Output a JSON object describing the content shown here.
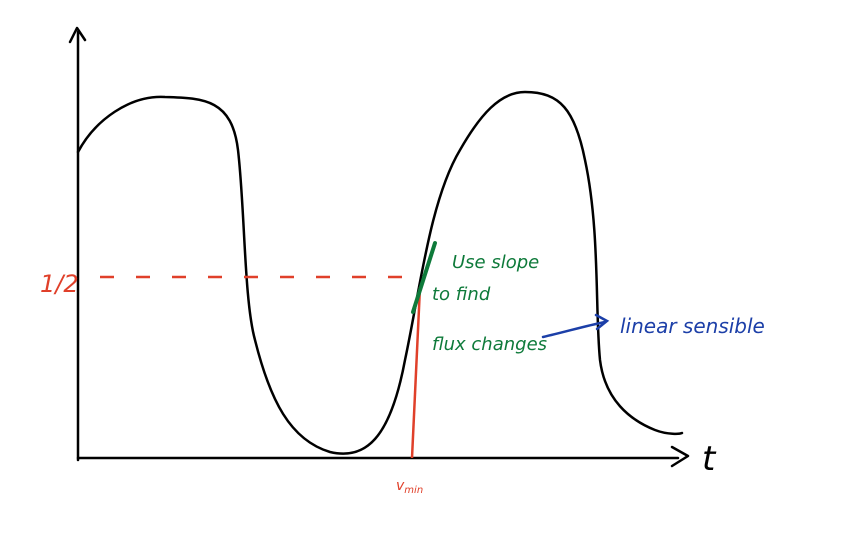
{
  "axes": {
    "x_label": "t",
    "y_marker": "1/2",
    "x_marker": {
      "main": "v",
      "sub": "min"
    }
  },
  "annotations": [
    {
      "lines": [
        "Use slope",
        "to find",
        "flux changes"
      ]
    },
    {
      "text": "linear sensible"
    }
  ]
}
